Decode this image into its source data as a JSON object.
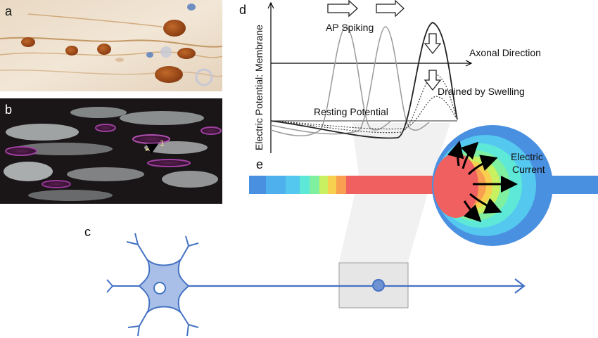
{
  "panels": {
    "a": "a",
    "b": "b",
    "c": "c",
    "d": "d",
    "e": "e"
  },
  "panel_b": {
    "marker": "1"
  },
  "panel_d": {
    "y_axis_label": "Electric Potential: Membrane",
    "spiking_label": "AP Spiking",
    "axonal_label": "Axonal Direction",
    "drained_label": "Drained by Swelling",
    "resting_label": "Resting Potential"
  },
  "panel_e": {
    "current_label_line1": "Electric",
    "current_label_line2": "Current",
    "gradient_colors": [
      "#4a90e0",
      "#55c8f0",
      "#5ee8d8",
      "#7ef0a0",
      "#c8f060",
      "#f8d050",
      "#f8a050",
      "#f06060"
    ]
  },
  "colors": {
    "neuron_stroke": "#4472c4",
    "neuron_fill": "#a9bfe8",
    "swelling_outer": "#4a90e0",
    "axon_core": "#f06060"
  }
}
